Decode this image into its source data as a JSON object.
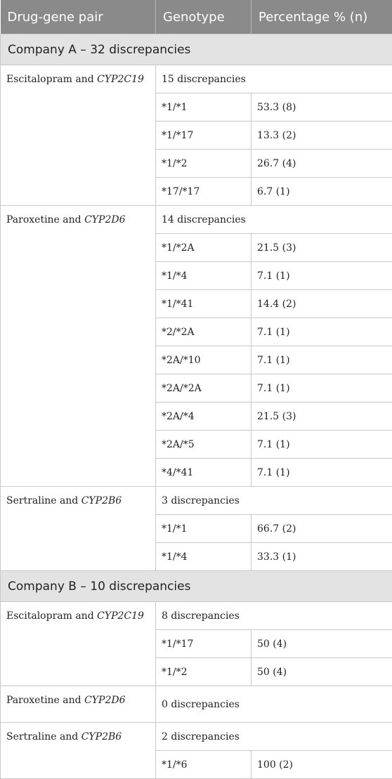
{
  "headers": [
    "Drug-gene pair",
    "Genotype",
    "Percentage % (n)"
  ],
  "sections": [
    {
      "title": "Company A – 32 discrepancies",
      "pairs": [
        {
          "drug": "Escitalopram and ",
          "gene": "CYP2C19",
          "summary": "15 discrepancies",
          "rows": [
            {
              "genotype": "*1/*1",
              "pct": "53.3 (8)"
            },
            {
              "genotype": "*1/*17",
              "pct": "13.3 (2)"
            },
            {
              "genotype": "*1/*2",
              "pct": "26.7 (4)"
            },
            {
              "genotype": "*17/*17",
              "pct": "6.7 (1)"
            }
          ]
        },
        {
          "drug": "Paroxetine and ",
          "gene": "CYP2D6",
          "summary": "14 discrepancies",
          "rows": [
            {
              "genotype": "*1/*2A",
              "pct": "21.5 (3)"
            },
            {
              "genotype": "*1/*4",
              "pct": "7.1 (1)"
            },
            {
              "genotype": "*1/*41",
              "pct": "14.4 (2)"
            },
            {
              "genotype": "*2/*2A",
              "pct": "7.1 (1)"
            },
            {
              "genotype": "*2A/*10",
              "pct": "7.1 (1)"
            },
            {
              "genotype": "*2A/*2A",
              "pct": "7.1 (1)"
            },
            {
              "genotype": "*2A/*4",
              "pct": "21.5 (3)"
            },
            {
              "genotype": "*2A/*5",
              "pct": "7.1 (1)"
            },
            {
              "genotype": "*4/*41",
              "pct": "7.1 (1)"
            }
          ]
        },
        {
          "drug": "Sertraline and ",
          "gene": "CYP2B6",
          "summary": "3 discrepancies",
          "rows": [
            {
              "genotype": "*1/*1",
              "pct": "66.7 (2)"
            },
            {
              "genotype": "*1/*4",
              "pct": "33.3 (1)"
            }
          ]
        }
      ]
    },
    {
      "title": "Company B – 10 discrepancies",
      "pairs": [
        {
          "drug": "Escitalopram and ",
          "gene": "CYP2C19",
          "summary": "8 discrepancies",
          "rows": [
            {
              "genotype": "*1/*17",
              "pct": "50 (4)"
            },
            {
              "genotype": "*1/*2",
              "pct": "50 (4)"
            }
          ]
        },
        {
          "drug": "Paroxetine and ",
          "gene": "CYP2D6",
          "summary": "0 discrepancies",
          "rows": []
        },
        {
          "drug": "Sertraline and ",
          "gene": "CYP2B6",
          "summary": "2 discrepancies",
          "rows": [
            {
              "genotype": "*1/*6",
              "pct": "100 (2)"
            }
          ]
        }
      ]
    }
  ]
}
